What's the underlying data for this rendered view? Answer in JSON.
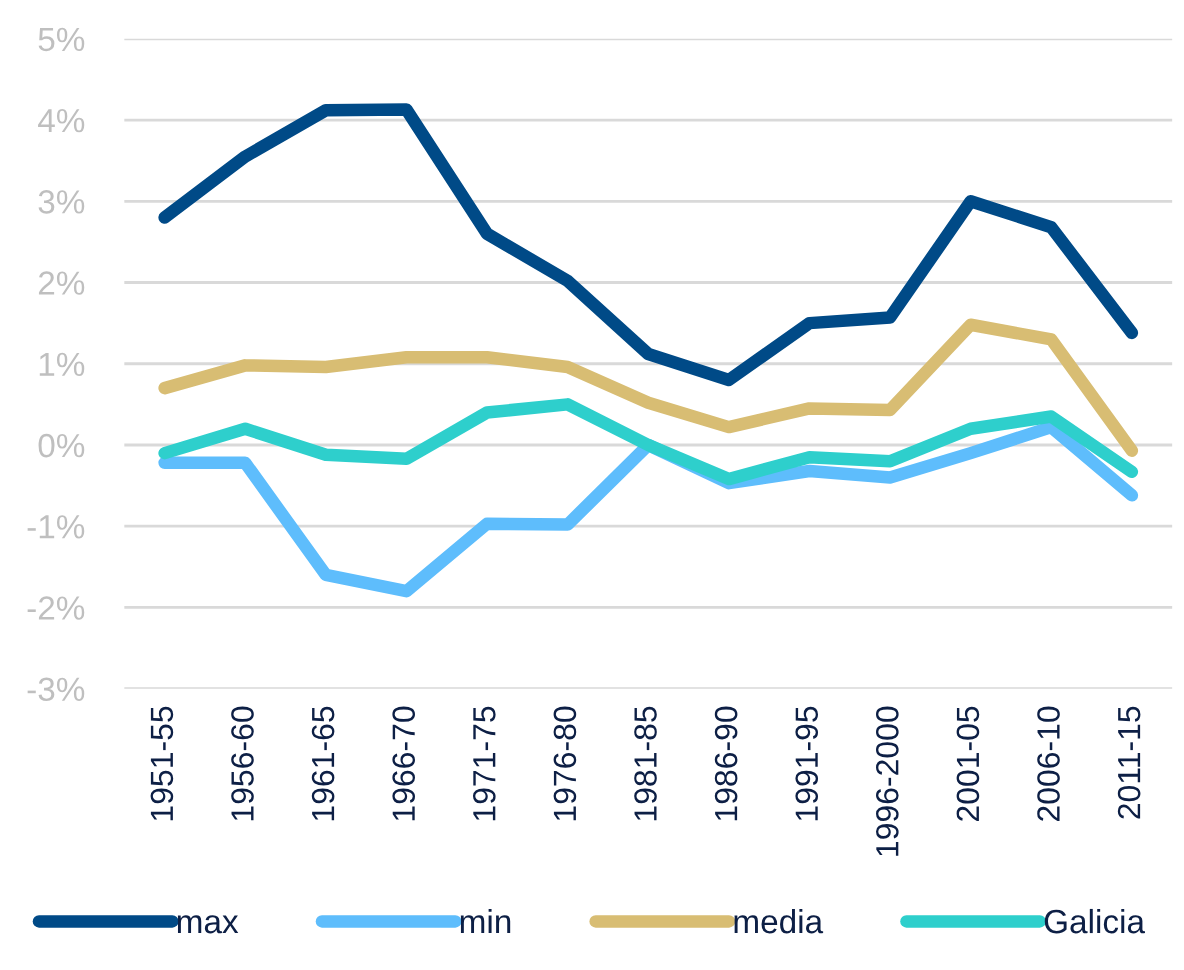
{
  "chart_data": {
    "type": "line",
    "categories": [
      "1951-55",
      "1956-60",
      "1961-65",
      "1966-70",
      "1971-75",
      "1976-80",
      "1981-85",
      "1986-90",
      "1991-95",
      "1996-2000",
      "2001-05",
      "2006-10",
      "2011-15"
    ],
    "series": [
      {
        "name": "max",
        "color": "#004a87",
        "values": [
          2.8,
          3.55,
          4.12,
          4.13,
          2.6,
          2.02,
          1.12,
          0.8,
          1.5,
          1.57,
          3.0,
          2.68,
          1.38
        ]
      },
      {
        "name": "min",
        "color": "#5ebdfc",
        "values": [
          -0.22,
          -0.22,
          -1.6,
          -1.8,
          -0.97,
          -0.98,
          0.0,
          -0.47,
          -0.32,
          -0.4,
          -0.1,
          0.22,
          -0.62
        ]
      },
      {
        "name": "media",
        "color": "#d8bd73",
        "values": [
          0.7,
          0.98,
          0.96,
          1.08,
          1.08,
          0.96,
          0.52,
          0.22,
          0.45,
          0.43,
          1.48,
          1.3,
          -0.07
        ]
      },
      {
        "name": "Galicia",
        "color": "#2ecfcc",
        "values": [
          -0.1,
          0.2,
          -0.12,
          -0.17,
          0.4,
          0.5,
          0.0,
          -0.42,
          -0.15,
          -0.2,
          0.2,
          0.35,
          -0.33
        ]
      }
    ],
    "ylim": [
      -3,
      5
    ],
    "yticks": [
      {
        "value": -3,
        "label": "-3%"
      },
      {
        "value": -2,
        "label": "-2%"
      },
      {
        "value": -1,
        "label": "-1%"
      },
      {
        "value": 0,
        "label": "0%"
      },
      {
        "value": 1,
        "label": "1%"
      },
      {
        "value": 2,
        "label": "2%"
      },
      {
        "value": 3,
        "label": "3%"
      },
      {
        "value": 4,
        "label": "4%"
      },
      {
        "value": 5,
        "label": "5%"
      }
    ],
    "grid": "y",
    "legend": "bottom",
    "marker": "none",
    "line_style": "solid"
  }
}
